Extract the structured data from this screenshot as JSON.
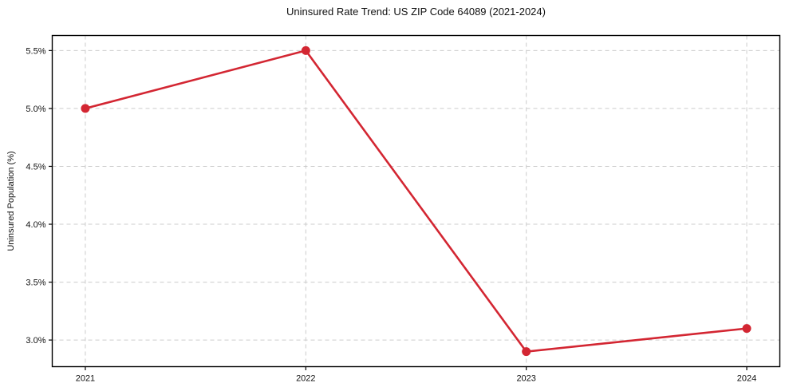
{
  "chart_data": {
    "type": "line",
    "title": "Uninsured Rate Trend: US ZIP Code 64089 (2021-2024)",
    "xlabel": "",
    "ylabel": "Uninsured Population (%)",
    "x": [
      2021,
      2022,
      2023,
      2024
    ],
    "x_tick_labels": [
      "2021",
      "2022",
      "2023",
      "2024"
    ],
    "series": [
      {
        "name": "Uninsured rate",
        "values": [
          5.0,
          5.5,
          2.9,
          3.1
        ]
      }
    ],
    "y_ticks": [
      3.0,
      3.5,
      4.0,
      4.5,
      5.0,
      5.5
    ],
    "y_tick_labels": [
      "3.0%",
      "3.5%",
      "4.0%",
      "4.5%",
      "5.0%",
      "5.5%"
    ],
    "xlim": [
      2020.85,
      2024.15
    ],
    "ylim": [
      2.77,
      5.63
    ],
    "grid": true,
    "grid_style": "dashed",
    "legend": false,
    "line_color": "#d32632",
    "marker": "circle",
    "marker_radius": 5.5,
    "line_width": 2.6,
    "grid_color": "#cccccc",
    "axis_color": "#000000",
    "background_color": "#ffffff"
  }
}
